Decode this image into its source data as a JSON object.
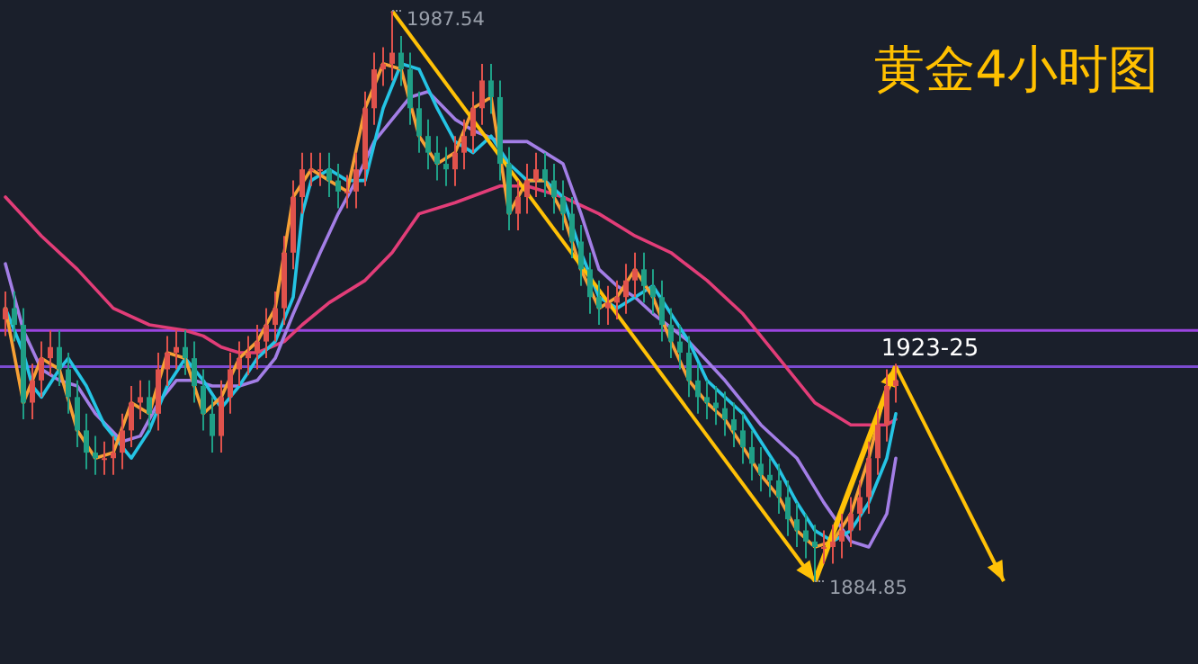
{
  "chart_data": {
    "type": "candlestick",
    "title": "黄金4小时图",
    "tick_labels": false,
    "categories": [
      null,
      null,
      null,
      null,
      null,
      null,
      null,
      null,
      null,
      null,
      null,
      null,
      null,
      null,
      null,
      null,
      null,
      null,
      null,
      null,
      null,
      null,
      null,
      null,
      null,
      null,
      null,
      null,
      null,
      null,
      null,
      null,
      null,
      null,
      null,
      null,
      null,
      null,
      null,
      null,
      null,
      null,
      null,
      null,
      null,
      null,
      null,
      null,
      null,
      null,
      null,
      null,
      null,
      null,
      null,
      null,
      null,
      null,
      null,
      null,
      null,
      null,
      null,
      null,
      null,
      null,
      null,
      null,
      null,
      null,
      null,
      null,
      null,
      null,
      null,
      null,
      null,
      null,
      null,
      null,
      null,
      null,
      null,
      null,
      null,
      null,
      null,
      null,
      null,
      null,
      null,
      null,
      null,
      null,
      null,
      null,
      null,
      null,
      null,
      null
    ],
    "ohlc": [
      [
        1932,
        1937,
        1929,
        1934
      ],
      [
        1934,
        1937,
        1928,
        1931
      ],
      [
        1931,
        1934,
        1914,
        1917
      ],
      [
        1917,
        1924,
        1914,
        1921
      ],
      [
        1921,
        1928,
        1918,
        1925
      ],
      [
        1925,
        1930,
        1922,
        1927
      ],
      [
        1927,
        1930,
        1920,
        1923
      ],
      [
        1923,
        1926,
        1915,
        1918
      ],
      [
        1918,
        1921,
        1909,
        1912
      ],
      [
        1912,
        1915,
        1905,
        1908
      ],
      [
        1908,
        1911,
        1904,
        1907
      ],
      [
        1907,
        1910,
        1904,
        1907
      ],
      [
        1907,
        1911,
        1904,
        1908
      ],
      [
        1908,
        1915,
        1905,
        1912
      ],
      [
        1912,
        1920,
        1909,
        1917
      ],
      [
        1917,
        1921,
        1914,
        1918
      ],
      [
        1918,
        1921,
        1912,
        1915
      ],
      [
        1915,
        1926,
        1912,
        1923
      ],
      [
        1923,
        1929,
        1920,
        1926
      ],
      [
        1926,
        1930,
        1923,
        1927
      ],
      [
        1927,
        1930,
        1922,
        1925
      ],
      [
        1925,
        1928,
        1917,
        1920
      ],
      [
        1920,
        1923,
        1912,
        1915
      ],
      [
        1915,
        1918,
        1908,
        1911
      ],
      [
        1911,
        1921,
        1908,
        1918
      ],
      [
        1918,
        1926,
        1915,
        1923
      ],
      [
        1923,
        1928,
        1920,
        1925
      ],
      [
        1925,
        1929,
        1922,
        1926
      ],
      [
        1926,
        1931,
        1923,
        1928
      ],
      [
        1928,
        1934,
        1925,
        1931
      ],
      [
        1931,
        1937,
        1928,
        1934
      ],
      [
        1934,
        1947,
        1931,
        1944
      ],
      [
        1944,
        1957,
        1941,
        1954
      ],
      [
        1954,
        1962,
        1951,
        1959
      ],
      [
        1959,
        1962,
        1956,
        1959
      ],
      [
        1959,
        1962,
        1956,
        1959
      ],
      [
        1959,
        1962,
        1954,
        1957
      ],
      [
        1957,
        1960,
        1952,
        1955
      ],
      [
        1955,
        1958,
        1952,
        1955
      ],
      [
        1955,
        1962,
        1952,
        1959
      ],
      [
        1959,
        1973,
        1956,
        1970
      ],
      [
        1970,
        1980,
        1967,
        1977
      ],
      [
        1977,
        1981,
        1974,
        1978
      ],
      [
        1978,
        1987.54,
        1975,
        1980
      ],
      [
        1980,
        1983,
        1974,
        1977
      ],
      [
        1977,
        1980,
        1967,
        1970
      ],
      [
        1970,
        1973,
        1962,
        1965
      ],
      [
        1965,
        1968,
        1959,
        1962
      ],
      [
        1962,
        1965,
        1957,
        1960
      ],
      [
        1960,
        1963,
        1956,
        1959
      ],
      [
        1959,
        1965,
        1956,
        1962
      ],
      [
        1962,
        1968,
        1959,
        1965
      ],
      [
        1965,
        1973,
        1962,
        1970
      ],
      [
        1970,
        1978,
        1967,
        1975
      ],
      [
        1975,
        1978,
        1969,
        1972
      ],
      [
        1972,
        1975,
        1957,
        1960
      ],
      [
        1960,
        1963,
        1948,
        1951
      ],
      [
        1951,
        1957,
        1948,
        1954
      ],
      [
        1954,
        1960,
        1951,
        1957
      ],
      [
        1957,
        1962,
        1954,
        1959
      ],
      [
        1959,
        1962,
        1954,
        1957
      ],
      [
        1957,
        1960,
        1951,
        1954
      ],
      [
        1954,
        1957,
        1948,
        1951
      ],
      [
        1951,
        1954,
        1943,
        1946
      ],
      [
        1946,
        1949,
        1938,
        1941
      ],
      [
        1941,
        1944,
        1933,
        1936
      ],
      [
        1936,
        1939,
        1931,
        1934
      ],
      [
        1934,
        1938,
        1931,
        1935
      ],
      [
        1935,
        1939,
        1932,
        1936
      ],
      [
        1936,
        1942,
        1933,
        1939
      ],
      [
        1939,
        1944,
        1936,
        1941
      ],
      [
        1941,
        1944,
        1935,
        1938
      ],
      [
        1938,
        1941,
        1933,
        1936
      ],
      [
        1936,
        1939,
        1928,
        1931
      ],
      [
        1931,
        1934,
        1925,
        1928
      ],
      [
        1928,
        1931,
        1923,
        1926
      ],
      [
        1926,
        1929,
        1918,
        1921
      ],
      [
        1921,
        1924,
        1915,
        1918
      ],
      [
        1918,
        1921,
        1914,
        1917
      ],
      [
        1917,
        1920,
        1913,
        1916
      ],
      [
        1916,
        1919,
        1911,
        1914
      ],
      [
        1914,
        1917,
        1909,
        1912
      ],
      [
        1912,
        1915,
        1906,
        1909
      ],
      [
        1909,
        1912,
        1903,
        1906
      ],
      [
        1906,
        1909,
        1901,
        1904
      ],
      [
        1904,
        1907,
        1900,
        1903
      ],
      [
        1903,
        1906,
        1897,
        1900
      ],
      [
        1900,
        1903,
        1893,
        1896
      ],
      [
        1896,
        1899,
        1891,
        1894
      ],
      [
        1894,
        1897,
        1889,
        1892
      ],
      [
        1892,
        1895,
        1884.85,
        1891
      ],
      [
        1891,
        1894,
        1888,
        1891
      ],
      [
        1891,
        1895,
        1888,
        1892
      ],
      [
        1892,
        1897,
        1889,
        1894
      ],
      [
        1894,
        1900,
        1891,
        1897
      ],
      [
        1897,
        1903,
        1894,
        1900
      ],
      [
        1900,
        1910,
        1897,
        1907
      ],
      [
        1907,
        1916,
        1904,
        1913
      ],
      [
        1913,
        1923,
        1910,
        1920
      ],
      [
        1920,
        1924,
        1917,
        1921
      ]
    ],
    "series": [
      {
        "type": "line",
        "color": "#e23d78",
        "values": [
          1954,
          null,
          null,
          null,
          1947,
          null,
          null,
          null,
          1941,
          null,
          null,
          null,
          1934,
          null,
          null,
          null,
          1931,
          null,
          null,
          null,
          1930,
          null,
          1929,
          null,
          1927,
          null,
          1926,
          null,
          1926,
          null,
          null,
          1928,
          null,
          1931,
          null,
          null,
          1935,
          null,
          null,
          null,
          1939,
          null,
          null,
          1944,
          null,
          null,
          1951,
          null,
          null,
          null,
          1953,
          null,
          null,
          null,
          null,
          1956,
          null,
          null,
          1956,
          null,
          null,
          null,
          1954,
          null,
          null,
          null,
          1951,
          null,
          null,
          null,
          1947,
          null,
          null,
          null,
          1944,
          null,
          null,
          null,
          1939,
          null,
          null,
          null,
          1933,
          null,
          null,
          null,
          1925,
          null,
          null,
          null,
          1917,
          null,
          null,
          null,
          1913,
          null,
          null,
          null,
          1913,
          1914
        ]
      },
      {
        "type": "line",
        "color": "#a37ee6",
        "values": [
          1942,
          null,
          1930,
          null,
          1923,
          null,
          1921,
          null,
          1920,
          null,
          1915,
          null,
          null,
          1910,
          null,
          1911,
          null,
          1917,
          null,
          1921,
          null,
          1921,
          null,
          1920,
          null,
          null,
          1920,
          null,
          1921,
          null,
          1925,
          null,
          1933,
          null,
          null,
          1944,
          null,
          1951,
          null,
          1957,
          null,
          1964,
          null,
          1968,
          null,
          1972,
          null,
          1973,
          null,
          null,
          1968,
          null,
          1966,
          null,
          null,
          1964,
          null,
          null,
          1964,
          null,
          1962,
          null,
          1960,
          null,
          1951,
          null,
          1941,
          null,
          1938,
          null,
          1936,
          null,
          1933,
          null,
          null,
          null,
          1928,
          null,
          null,
          null,
          1921,
          null,
          null,
          null,
          1913,
          null,
          null,
          null,
          1907,
          null,
          null,
          1899,
          null,
          null,
          1892,
          null,
          1891,
          null,
          1897,
          1907
        ]
      },
      {
        "type": "line",
        "color": "#25c4e4",
        "values": [
          1934,
          null,
          1926,
          1920,
          1918,
          null,
          1923,
          1925,
          null,
          1920,
          null,
          1913,
          null,
          null,
          1907,
          null,
          1912,
          null,
          1920,
          null,
          1925,
          null,
          1921,
          null,
          1916,
          null,
          1920,
          null,
          1925,
          null,
          1928,
          null,
          1936,
          1951,
          1957,
          null,
          1959,
          null,
          1957,
          null,
          1957,
          null,
          1970,
          null,
          1978,
          null,
          1977,
          null,
          1970,
          null,
          1964,
          null,
          1962,
          null,
          1965,
          null,
          1960,
          null,
          1957,
          null,
          1957,
          null,
          1954,
          null,
          1944,
          null,
          1936,
          null,
          1934,
          null,
          1936,
          null,
          1938,
          null,
          1933,
          null,
          1928,
          null,
          1921,
          null,
          1918,
          null,
          1915,
          null,
          1910,
          null,
          1905,
          null,
          1899,
          null,
          1894,
          null,
          1892,
          null,
          1894,
          null,
          1899,
          null,
          1907,
          1915
        ]
      },
      {
        "type": "line",
        "color": "#f7a035",
        "values": [
          1934,
          null,
          1917,
          null,
          1925,
          null,
          1923,
          null,
          1912,
          null,
          1907,
          null,
          1908,
          null,
          1917,
          null,
          1915,
          null,
          1926,
          null,
          1925,
          null,
          1915,
          null,
          1918,
          null,
          1925,
          null,
          1928,
          null,
          1934,
          null,
          1954,
          null,
          1959,
          null,
          1957,
          null,
          1955,
          null,
          1970,
          null,
          1978,
          null,
          1977,
          null,
          1965,
          null,
          1960,
          null,
          1962,
          null,
          1970,
          null,
          1972,
          null,
          1951,
          null,
          1957,
          null,
          1957,
          null,
          1951,
          null,
          1941,
          null,
          1934,
          null,
          1936,
          null,
          1941,
          null,
          1936,
          null,
          1928,
          null,
          1921,
          null,
          1917,
          null,
          1914,
          null,
          1909,
          null,
          1904,
          null,
          1900,
          null,
          1894,
          null,
          1891,
          null,
          1892,
          null,
          1897,
          null,
          1907,
          null,
          1920,
          1921
        ]
      }
    ],
    "ref_lines": [
      {
        "axis": "y",
        "value": 1930,
        "color": "#9b45e0"
      },
      {
        "axis": "y",
        "value": 1923.5,
        "color": "#7b4bd0",
        "label": "1923-25"
      }
    ],
    "annotations": [
      "1987.54",
      "1884.85"
    ]
  }
}
